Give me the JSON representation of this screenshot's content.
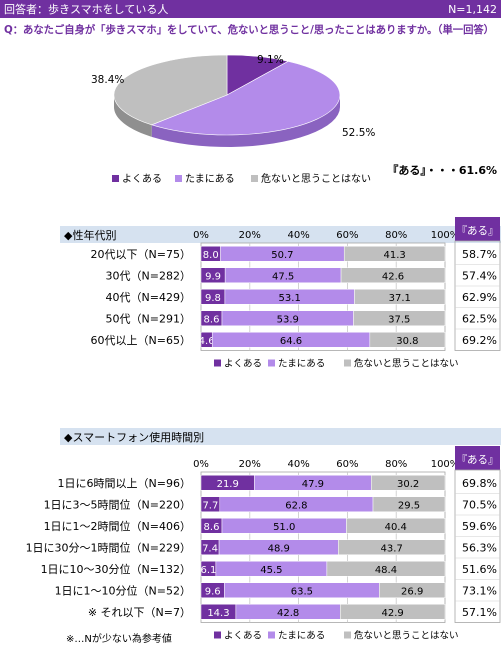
{
  "header": {
    "respondents": "回答者：歩きスマホをしている人",
    "n_total": "N=1,142",
    "question": "Q：あなたご自身が「歩きスマホ」をしていて、危ないと思うこと/思ったことはありますか。（単一回答）"
  },
  "legend": [
    "よくある",
    "たまにある",
    "危ないと思うことはない"
  ],
  "ari_header": "『ある』",
  "colors": {
    "header_bg": "#7030a0",
    "question_text": "#7030a0",
    "often": "#7030a0",
    "sometimes": "#b38bea",
    "never": "#bfbfbf",
    "section_bg": "#d6e2f0",
    "ari_header_bg": "#7030a0"
  },
  "chart_data": [
    {
      "type": "pie",
      "categories": [
        "よくある",
        "たまにある",
        "危ないと思うことはない"
      ],
      "values": [
        9.1,
        52.5,
        38.4
      ],
      "value_labels": [
        "9.1%",
        "52.5%",
        "38.4%"
      ],
      "summary": "『ある』・・・61.6%"
    },
    {
      "type": "bar",
      "title": "◆性年代別",
      "stacked": true,
      "orientation": "horizontal",
      "xlim": [
        0,
        100
      ],
      "xticks": [
        "0%",
        "20%",
        "40%",
        "60%",
        "80%",
        "100%"
      ],
      "categories": [
        "20代以下（N=75）",
        "30代（N=282）",
        "40代（N=429）",
        "50代（N=291）",
        "60代以上（N=65）"
      ],
      "series": [
        {
          "name": "よくある",
          "values": [
            8.0,
            9.9,
            9.8,
            8.6,
            4.6
          ]
        },
        {
          "name": "たまにある",
          "values": [
            50.7,
            47.5,
            53.1,
            53.9,
            64.6
          ]
        },
        {
          "name": "危ないと思うことはない",
          "values": [
            41.3,
            42.6,
            37.1,
            37.5,
            30.8
          ]
        }
      ],
      "ari": [
        "58.7%",
        "57.4%",
        "62.9%",
        "62.5%",
        "69.2%"
      ]
    },
    {
      "type": "bar",
      "title": "◆スマートフォン使用時間別",
      "stacked": true,
      "orientation": "horizontal",
      "xlim": [
        0,
        100
      ],
      "xticks": [
        "0%",
        "20%",
        "40%",
        "60%",
        "80%",
        "100%"
      ],
      "categories": [
        "1日に6時間以上（N=96）",
        "1日に3～5時間位（N=220）",
        "1日に1～2時間位（N=406）",
        "1日に30分～1時間位（N=229）",
        "1日に10～30分位（N=132）",
        "1日に1～10分位（N=52）",
        "※ それ以下（N=7）"
      ],
      "series": [
        {
          "name": "よくある",
          "values": [
            21.9,
            7.7,
            8.6,
            7.4,
            6.1,
            9.6,
            14.3
          ]
        },
        {
          "name": "たまにある",
          "values": [
            47.9,
            62.8,
            51.0,
            48.9,
            45.5,
            63.5,
            42.8
          ]
        },
        {
          "name": "危ないと思うことはない",
          "values": [
            30.2,
            29.5,
            40.4,
            43.7,
            48.4,
            26.9,
            42.9
          ]
        }
      ],
      "ari": [
        "69.8%",
        "70.5%",
        "59.6%",
        "56.3%",
        "51.6%",
        "73.1%",
        "57.1%"
      ]
    }
  ],
  "footnote": "※…Nが少ない為参考値"
}
